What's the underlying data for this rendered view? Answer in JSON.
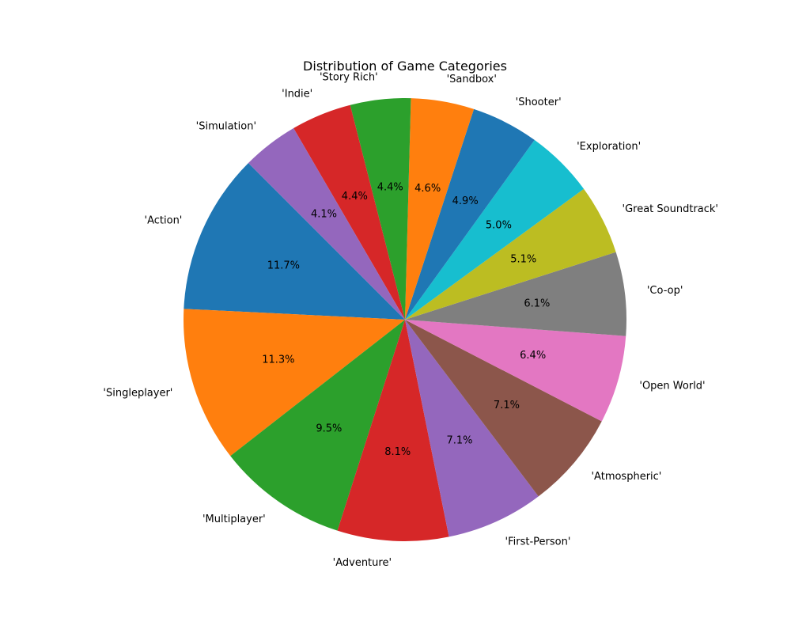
{
  "chart_data": {
    "type": "pie",
    "title": "Distribution of Game Categories",
    "categories": [
      "'Action'",
      "'Singleplayer'",
      "'Multiplayer'",
      "'Adventure'",
      "'First-Person'",
      "'Atmospheric'",
      "'Open World'",
      "'Co-op'",
      "'Great Soundtrack'",
      "'Exploration'",
      "'Shooter'",
      "'Sandbox'",
      "'Story Rich'",
      "'Indie'",
      "'Simulation'"
    ],
    "values": [
      11.7,
      11.3,
      9.5,
      8.1,
      7.1,
      7.1,
      6.4,
      6.1,
      5.1,
      5.0,
      4.9,
      4.6,
      4.4,
      4.4,
      4.1
    ],
    "value_labels": [
      "11.7%",
      "11.3%",
      "9.5%",
      "8.1%",
      "7.1%",
      "7.1%",
      "6.4%",
      "6.1%",
      "5.1%",
      "5.0%",
      "4.9%",
      "4.6%",
      "4.4%",
      "4.4%",
      "4.1%"
    ],
    "colors": [
      "#1f77b4",
      "#ff7f0e",
      "#2ca02c",
      "#d62728",
      "#9467bd",
      "#8c564b",
      "#e377c2",
      "#7f7f7f",
      "#bcbd22",
      "#17becf",
      "#1f77b4",
      "#ff7f0e",
      "#2ca02c",
      "#d62728",
      "#9467bd"
    ],
    "start_angle_deg": 135,
    "direction": "counterclockwise",
    "legend": "none"
  }
}
